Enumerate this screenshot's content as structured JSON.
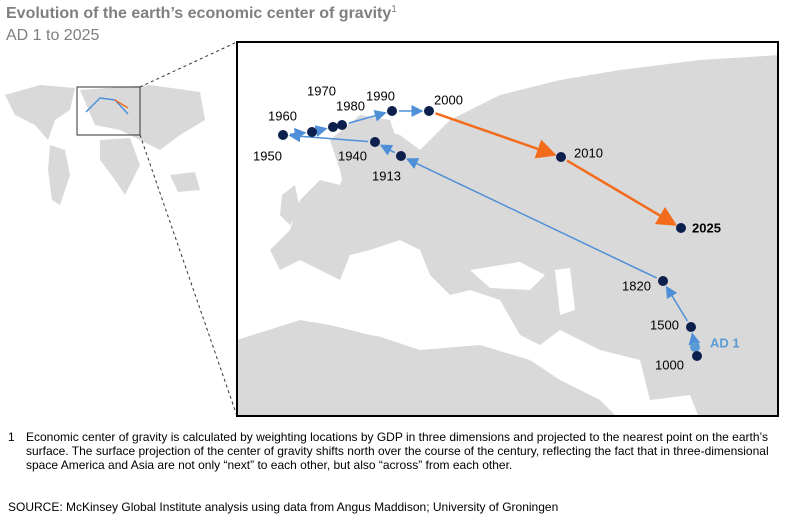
{
  "title": "Evolution of the earth’s economic center of gravity",
  "title_note": "1",
  "subtitle": "AD 1 to 2025",
  "points": [
    {
      "label": "AD 1"
    },
    {
      "label": "1000"
    },
    {
      "label": "1500"
    },
    {
      "label": "1820"
    },
    {
      "label": "1913"
    },
    {
      "label": "1940"
    },
    {
      "label": "1950"
    },
    {
      "label": "1960"
    },
    {
      "label": "1970"
    },
    {
      "label": "1980"
    },
    {
      "label": "1990"
    },
    {
      "label": "2000"
    },
    {
      "label": "2010"
    },
    {
      "label": "2025"
    }
  ],
  "footnote": {
    "marker": "1",
    "text": "Economic center of gravity is calculated by weighting locations by GDP in three dimensions and projected to the nearest point on the earth’s surface. The surface projection of the center of gravity shifts north over the course of the century, reflecting the fact that in three-dimensional space America and Asia are not only “next” to each other, but also “across” from each other."
  },
  "source": "SOURCE: McKinsey Global Institute analysis using data from Angus Maddison; University of Groningen"
}
